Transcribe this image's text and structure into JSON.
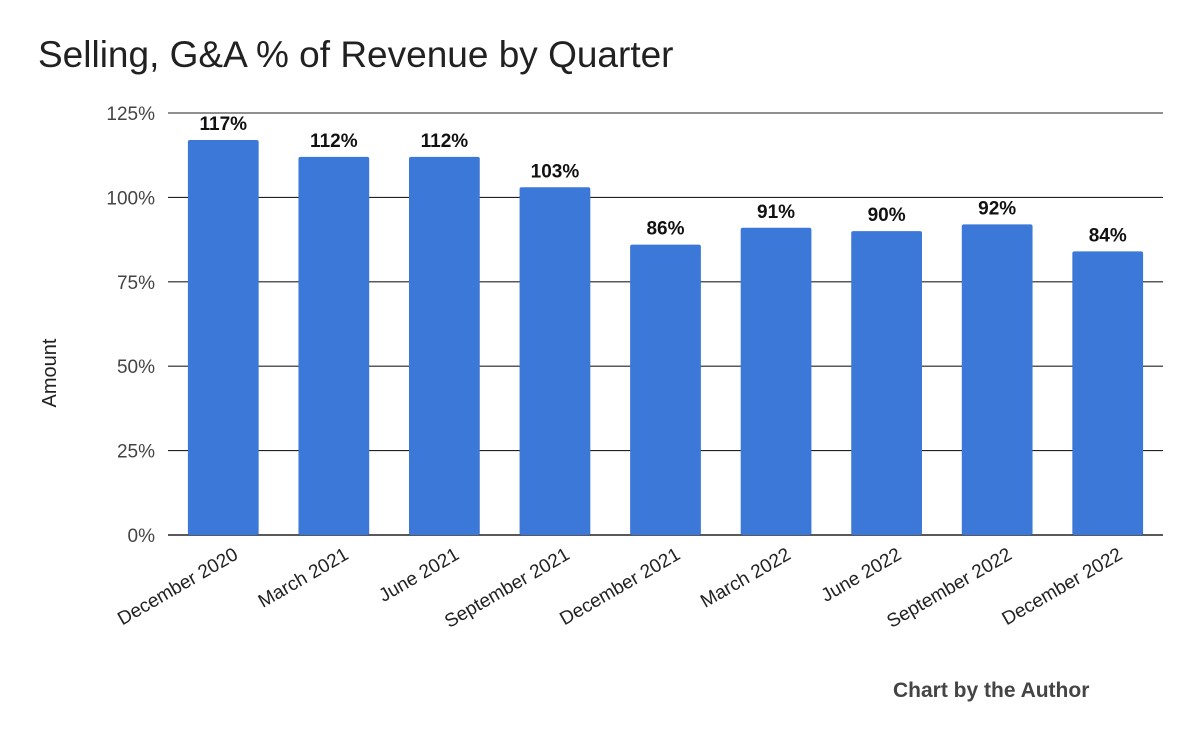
{
  "chart_data": {
    "type": "bar",
    "title": "Selling, G&A % of Revenue by Quarter",
    "xlabel": "",
    "ylabel": "Amount",
    "categories": [
      "December 2020",
      "March 2021",
      "June 2021",
      "September 2021",
      "December 2021",
      "March 2022",
      "June 2022",
      "September 2022",
      "December 2022"
    ],
    "values": [
      117,
      112,
      112,
      103,
      86,
      91,
      90,
      92,
      84
    ],
    "value_labels": [
      "117%",
      "112%",
      "112%",
      "103%",
      "86%",
      "91%",
      "90%",
      "92%",
      "84%"
    ],
    "value_suffix": "%",
    "ylim": [
      0,
      125
    ],
    "yticks": [
      0,
      25,
      50,
      75,
      100,
      125
    ],
    "ytick_labels": [
      "0%",
      "25%",
      "50%",
      "75%",
      "100%",
      "125%"
    ],
    "grid": true,
    "bar_color": "#3c78d8",
    "gridline_color": "#222222"
  },
  "credit": "Chart by the Author"
}
